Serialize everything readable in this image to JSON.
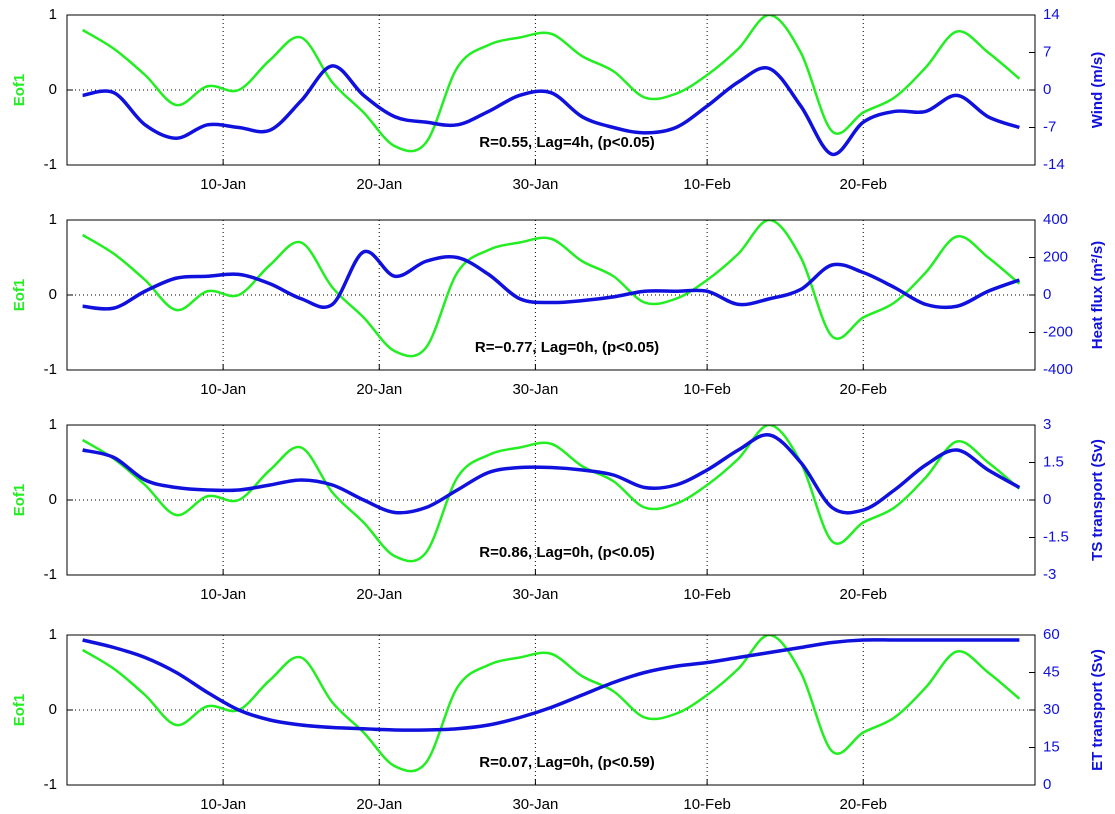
{
  "chart_data": [
    {
      "type": "line",
      "ylabel": "Eof1",
      "y2label": "Wind (m/s)",
      "annotation": "R=0.55, Lag=4h, (p<0.05)",
      "x": [
        "1-Jan",
        "3-Jan",
        "5-Jan",
        "7-Jan",
        "9-Jan",
        "11-Jan",
        "13-Jan",
        "15-Jan",
        "17-Jan",
        "19-Jan",
        "21-Jan",
        "23-Jan",
        "25-Jan",
        "27-Jan",
        "29-Jan",
        "31-Jan",
        "2-Feb",
        "4-Feb",
        "6-Feb",
        "8-Feb",
        "10-Feb",
        "12-Feb",
        "14-Feb",
        "16-Feb",
        "18-Feb",
        "20-Feb",
        "22-Feb",
        "24-Feb",
        "26-Feb",
        "28-Feb",
        "2-Mar"
      ],
      "xlim": [
        "31-Dec",
        "3-Mar"
      ],
      "xticks": [
        "10-Jan",
        "20-Jan",
        "30-Jan",
        "10-Feb",
        "20-Feb"
      ],
      "ylim": [
        -1,
        1
      ],
      "yticks": [
        -1,
        0,
        1
      ],
      "y2lim": [
        -14,
        14
      ],
      "y2ticks": [
        -14,
        -7,
        0,
        7,
        14
      ],
      "grid": true,
      "series": [
        {
          "color": "#22ee22",
          "values": [
            0.8,
            0.55,
            0.2,
            -0.2,
            0.05,
            0.0,
            0.4,
            0.7,
            0.1,
            -0.3,
            -0.75,
            -0.7,
            0.3,
            0.6,
            0.7,
            0.75,
            0.45,
            0.25,
            -0.1,
            -0.05,
            0.2,
            0.55,
            1.0,
            0.5,
            -0.55,
            -0.3,
            -0.1,
            0.3,
            0.78,
            0.5,
            0.15
          ]
        },
        {
          "color": "#1111dd",
          "axis": "y2",
          "values": [
            -1,
            -0.5,
            -6.5,
            -9,
            -6.5,
            -7,
            -7.5,
            -2,
            4.5,
            -1,
            -5,
            -6,
            -6.5,
            -4,
            -1,
            -0.5,
            -5,
            -7,
            -8,
            -7,
            -3,
            1.5,
            4,
            -3,
            -12,
            -6,
            -4,
            -4,
            -1,
            -5,
            -7
          ]
        }
      ]
    },
    {
      "type": "line",
      "ylabel": "Eof1",
      "y2label": "Heat flux (m²/s)",
      "annotation": "R=−0.77, Lag=0h, (p<0.05)",
      "x": [
        "1-Jan",
        "3-Jan",
        "5-Jan",
        "7-Jan",
        "9-Jan",
        "11-Jan",
        "13-Jan",
        "15-Jan",
        "17-Jan",
        "19-Jan",
        "21-Jan",
        "23-Jan",
        "25-Jan",
        "27-Jan",
        "29-Jan",
        "31-Jan",
        "2-Feb",
        "4-Feb",
        "6-Feb",
        "8-Feb",
        "10-Feb",
        "12-Feb",
        "14-Feb",
        "16-Feb",
        "18-Feb",
        "20-Feb",
        "22-Feb",
        "24-Feb",
        "26-Feb",
        "28-Feb",
        "2-Mar"
      ],
      "xlim": [
        "31-Dec",
        "3-Mar"
      ],
      "xticks": [
        "10-Jan",
        "20-Jan",
        "30-Jan",
        "10-Feb",
        "20-Feb"
      ],
      "ylim": [
        -1,
        1
      ],
      "yticks": [
        -1,
        0,
        1
      ],
      "y2lim": [
        -400,
        400
      ],
      "y2ticks": [
        -400,
        -200,
        0,
        200,
        400
      ],
      "grid": true,
      "series": [
        {
          "color": "#22ee22",
          "values": [
            0.8,
            0.55,
            0.2,
            -0.2,
            0.05,
            0.0,
            0.4,
            0.7,
            0.1,
            -0.3,
            -0.75,
            -0.7,
            0.3,
            0.6,
            0.7,
            0.75,
            0.45,
            0.25,
            -0.1,
            -0.05,
            0.2,
            0.55,
            1.0,
            0.5,
            -0.55,
            -0.3,
            -0.1,
            0.3,
            0.78,
            0.5,
            0.15
          ]
        },
        {
          "color": "#1111dd",
          "axis": "y2",
          "values": [
            -60,
            -70,
            20,
            90,
            100,
            110,
            60,
            -20,
            -50,
            230,
            100,
            180,
            200,
            110,
            -20,
            -40,
            -30,
            -10,
            20,
            20,
            20,
            -50,
            -20,
            30,
            160,
            120,
            40,
            -50,
            -60,
            20,
            80
          ]
        }
      ]
    },
    {
      "type": "line",
      "ylabel": "Eof1",
      "y2label": "TS transport (Sv)",
      "annotation": "R=0.86, Lag=0h, (p<0.05)",
      "x": [
        "1-Jan",
        "3-Jan",
        "5-Jan",
        "7-Jan",
        "9-Jan",
        "11-Jan",
        "13-Jan",
        "15-Jan",
        "17-Jan",
        "19-Jan",
        "21-Jan",
        "23-Jan",
        "25-Jan",
        "27-Jan",
        "29-Jan",
        "31-Jan",
        "2-Feb",
        "4-Feb",
        "6-Feb",
        "8-Feb",
        "10-Feb",
        "12-Feb",
        "14-Feb",
        "16-Feb",
        "18-Feb",
        "20-Feb",
        "22-Feb",
        "24-Feb",
        "26-Feb",
        "28-Feb",
        "2-Mar"
      ],
      "xlim": [
        "31-Dec",
        "3-Mar"
      ],
      "xticks": [
        "10-Jan",
        "20-Jan",
        "30-Jan",
        "10-Feb",
        "20-Feb"
      ],
      "ylim": [
        -1,
        1
      ],
      "yticks": [
        -1,
        0,
        1
      ],
      "y2lim": [
        -3,
        3
      ],
      "y2ticks": [
        -3,
        -1.5,
        0,
        1.5,
        3
      ],
      "grid": true,
      "series": [
        {
          "color": "#22ee22",
          "values": [
            0.8,
            0.55,
            0.2,
            -0.2,
            0.05,
            0.0,
            0.4,
            0.7,
            0.1,
            -0.3,
            -0.75,
            -0.7,
            0.3,
            0.6,
            0.7,
            0.75,
            0.45,
            0.25,
            -0.1,
            -0.05,
            0.2,
            0.55,
            1.0,
            0.5,
            -0.55,
            -0.3,
            -0.1,
            0.3,
            0.78,
            0.5,
            0.15
          ]
        },
        {
          "color": "#1111dd",
          "axis": "y2",
          "values": [
            2.0,
            1.7,
            0.8,
            0.5,
            0.4,
            0.4,
            0.6,
            0.8,
            0.6,
            0,
            -0.5,
            -0.3,
            0.4,
            1.1,
            1.3,
            1.3,
            1.2,
            1.0,
            0.5,
            0.6,
            1.2,
            2.0,
            2.6,
            1.5,
            -0.3,
            -0.4,
            0.4,
            1.4,
            2.0,
            1.2,
            0.5
          ]
        }
      ]
    },
    {
      "type": "line",
      "ylabel": "Eof1",
      "y2label": "ET transport (Sv)",
      "annotation": "R=0.07, Lag=0h, (p<0.59)",
      "x": [
        "1-Jan",
        "3-Jan",
        "5-Jan",
        "7-Jan",
        "9-Jan",
        "11-Jan",
        "13-Jan",
        "15-Jan",
        "17-Jan",
        "19-Jan",
        "21-Jan",
        "23-Jan",
        "25-Jan",
        "27-Jan",
        "29-Jan",
        "31-Jan",
        "2-Feb",
        "4-Feb",
        "6-Feb",
        "8-Feb",
        "10-Feb",
        "12-Feb",
        "14-Feb",
        "16-Feb",
        "18-Feb",
        "20-Feb",
        "22-Feb",
        "24-Feb",
        "26-Feb",
        "28-Feb",
        "2-Mar"
      ],
      "xlim": [
        "31-Dec",
        "3-Mar"
      ],
      "xticks": [
        "10-Jan",
        "20-Jan",
        "30-Jan",
        "10-Feb",
        "20-Feb"
      ],
      "ylim": [
        -1,
        1
      ],
      "yticks": [
        -1,
        0,
        1
      ],
      "y2lim": [
        0,
        60
      ],
      "y2ticks": [
        0,
        15,
        30,
        45,
        60
      ],
      "grid": true,
      "series": [
        {
          "color": "#22ee22",
          "values": [
            0.8,
            0.55,
            0.2,
            -0.2,
            0.05,
            0.0,
            0.4,
            0.7,
            0.1,
            -0.3,
            -0.75,
            -0.7,
            0.3,
            0.6,
            0.7,
            0.75,
            0.45,
            0.25,
            -0.1,
            -0.05,
            0.2,
            0.55,
            1.0,
            0.5,
            -0.55,
            -0.3,
            -0.1,
            0.3,
            0.78,
            0.5,
            0.15
          ]
        },
        {
          "color": "#1111dd",
          "axis": "y2",
          "values": [
            58,
            55,
            51,
            45,
            37,
            30,
            26,
            24,
            23,
            22.5,
            22,
            22,
            22.5,
            24,
            27,
            31,
            36,
            41,
            45,
            47.5,
            49,
            51,
            53,
            55,
            57,
            58,
            58,
            58,
            58,
            58,
            58
          ]
        }
      ]
    }
  ]
}
